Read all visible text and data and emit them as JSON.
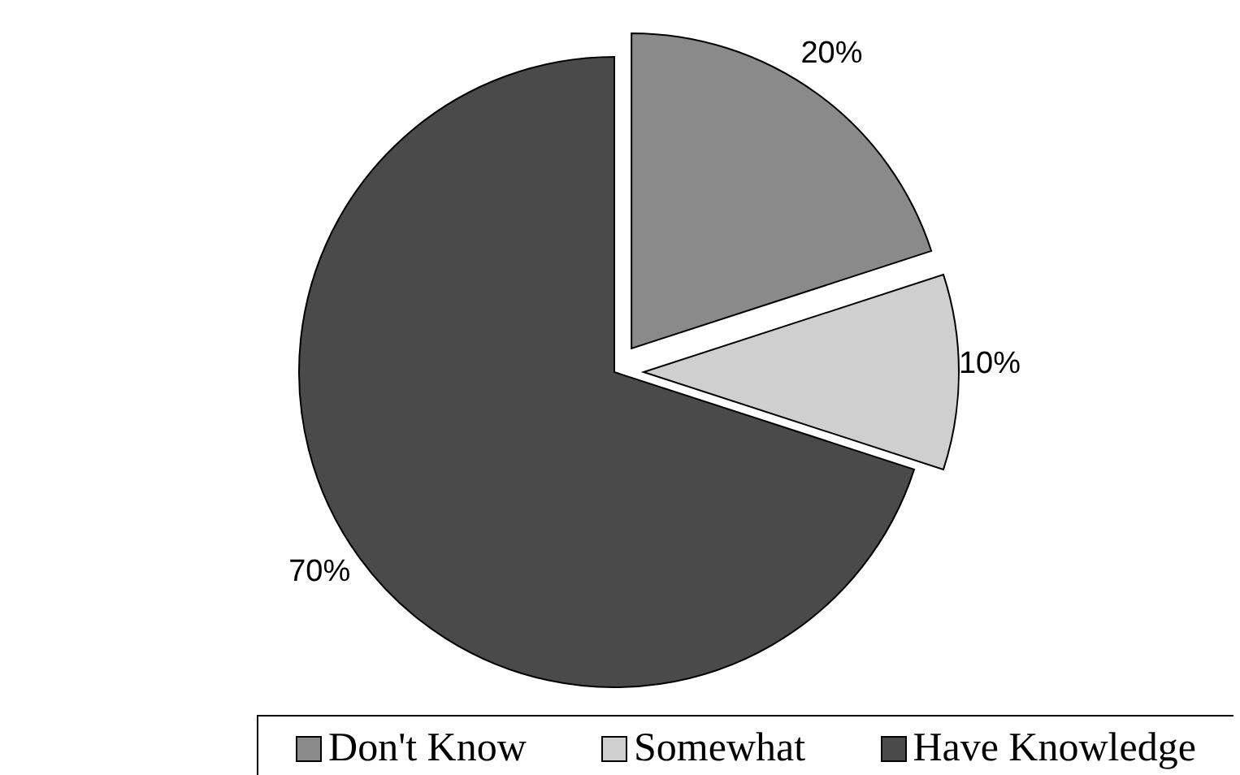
{
  "chart_data": {
    "type": "pie",
    "categories": [
      "Don't Know",
      "Somewhat",
      "Have Knowledge"
    ],
    "values": [
      20,
      10,
      70
    ],
    "colors": [
      "#8a8a8a",
      "#cfcfcf",
      "#4a4a4a"
    ],
    "value_labels": [
      "20%",
      "10%",
      "70%"
    ],
    "legend": "bottom"
  }
}
